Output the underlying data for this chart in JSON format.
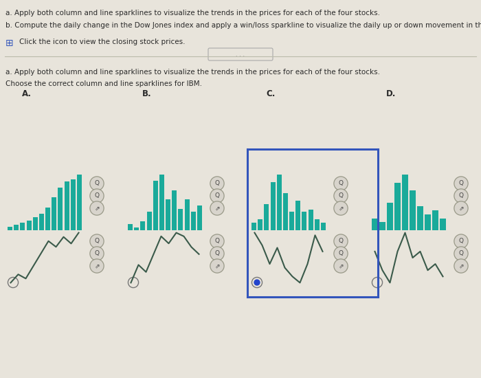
{
  "bg_color": "#e8e4db",
  "text_color": "#2a2a2a",
  "teal_color": "#1aaa9a",
  "line_color": "#3a5a4a",
  "selected_border": "#3355bb",
  "icon_bg": "#d8d4cc",
  "icon_border": "#999988",
  "radio_border": "#777777",
  "radio_fill": "#2244cc",
  "header_a": "a. Apply both column and line sparklines to visualize the trends in the prices for each of the four stocks.",
  "header_b": "b. Compute the daily change in the Dow Jones index and apply a win/loss sparkline to visualize the daily up or down movement in the index.",
  "click_line": "Click the icon to view the closing stock prices.",
  "section_a": "a. Apply both column and line sparklines to visualize the trends in the prices for each of the four stocks.",
  "choose": "Choose the correct column and line sparklines for IBM.",
  "option_labels": [
    "A.",
    "B.",
    "C.",
    "D."
  ],
  "line_A": [
    2.5,
    3.5,
    3.0,
    4.5,
    6.0,
    7.5,
    6.8,
    8.0,
    7.2,
    8.5
  ],
  "bar_A": [
    0.5,
    0.8,
    1.2,
    1.5,
    2.0,
    2.5,
    3.5,
    5.0,
    6.5,
    7.5,
    7.8,
    8.5
  ],
  "line_B": [
    2.0,
    4.5,
    3.5,
    6.0,
    8.5,
    7.5,
    9.0,
    8.5,
    7.0,
    6.0
  ],
  "bar_B": [
    1.0,
    0.5,
    1.5,
    3.0,
    8.0,
    9.0,
    5.0,
    6.5,
    3.5,
    5.0,
    3.0,
    4.0
  ],
  "line_C": [
    5.0,
    4.0,
    2.5,
    3.8,
    2.2,
    1.5,
    1.0,
    2.5,
    4.8,
    3.5
  ],
  "bar_C": [
    1.0,
    1.5,
    3.5,
    6.5,
    7.5,
    5.0,
    2.5,
    4.0,
    2.5,
    2.8,
    1.5,
    1.0
  ],
  "line_D": [
    5.5,
    4.0,
    3.0,
    5.5,
    7.0,
    5.0,
    5.5,
    4.0,
    4.5,
    3.5
  ],
  "bar_D": [
    1.5,
    1.0,
    3.5,
    6.0,
    7.0,
    5.0,
    3.0,
    2.0,
    2.5,
    1.5
  ]
}
